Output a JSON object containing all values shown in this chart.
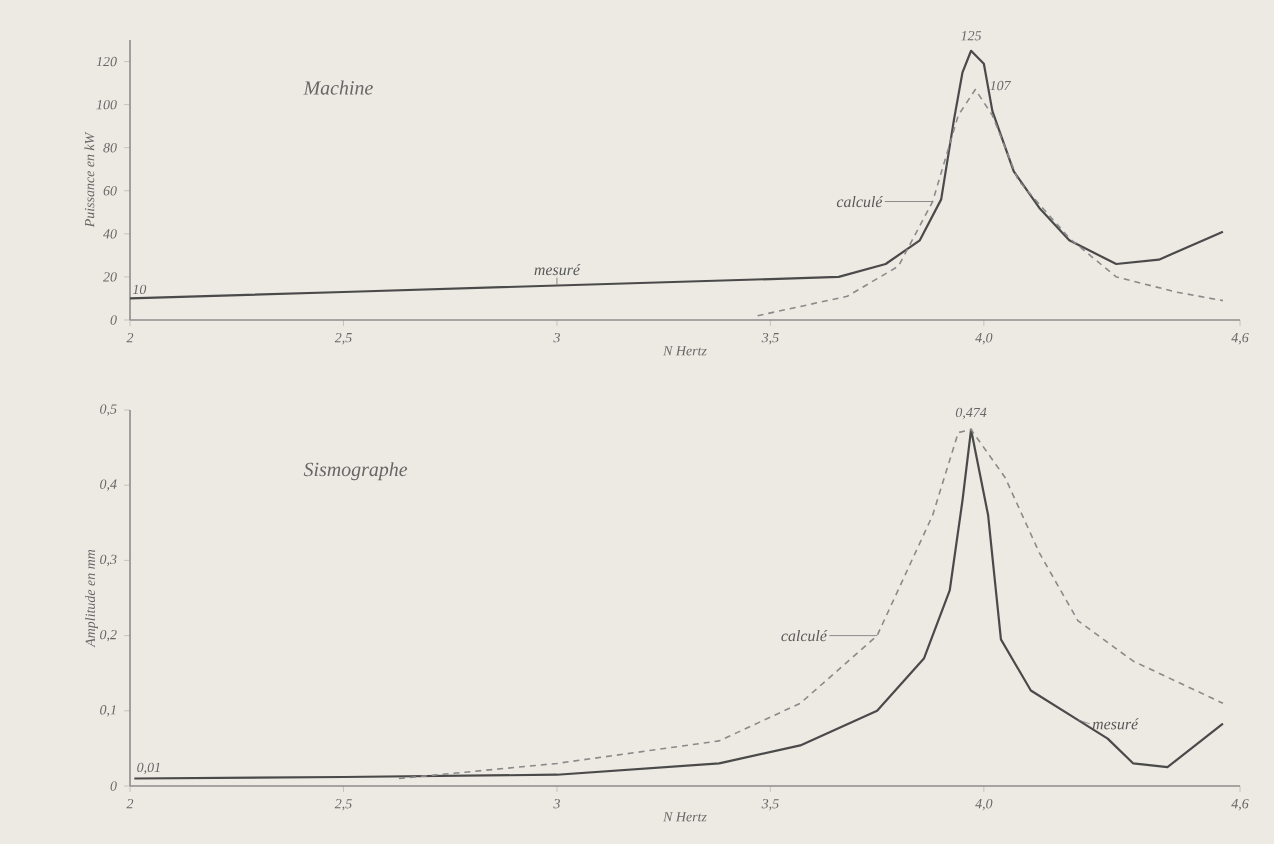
{
  "chart_data": [
    {
      "type": "line",
      "title": "Machine",
      "xlabel": "N Hertz",
      "ylabel": "Puissance en kW",
      "xlim": [
        2,
        4.6
      ],
      "xticks": [
        2,
        {
          "value": 2.5,
          "label": "2,5"
        },
        3,
        {
          "value": 3.5,
          "label": "3,5"
        },
        {
          "value": 4.0,
          "label": "4,0"
        },
        {
          "value": 4.6,
          "label": "4,6"
        }
      ],
      "ylim": [
        0,
        130
      ],
      "yticks": [
        0,
        20,
        40,
        60,
        80,
        100,
        120
      ],
      "series": [
        {
          "name": "mesuré",
          "color": "#4a4a4a",
          "line_style": "solid",
          "x": [
            2.0,
            2.5,
            3.0,
            3.5,
            3.66,
            3.77,
            3.85,
            3.9,
            3.93,
            3.95,
            3.97,
            4.0,
            4.02,
            4.07,
            4.13,
            4.2,
            4.31,
            4.41,
            4.56
          ],
          "values": [
            10,
            13,
            16,
            19,
            20,
            26,
            37,
            56,
            93,
            115,
            125,
            119,
            97,
            69,
            52,
            37,
            26,
            28,
            41
          ]
        },
        {
          "name": "calculé",
          "color": "#8a8a8a",
          "line_style": "dashed",
          "x": [
            3.47,
            3.68,
            3.8,
            3.88,
            3.94,
            3.98,
            4.02,
            4.08,
            4.2,
            4.31,
            4.45,
            4.56
          ],
          "values": [
            2,
            11,
            25,
            55,
            95,
            107,
            95,
            65,
            38,
            20,
            13,
            9
          ]
        }
      ],
      "annotations": [
        {
          "text": "10",
          "x": 2.0,
          "y": 10
        },
        {
          "text": "125",
          "x": 3.97,
          "y": 125
        },
        {
          "text": "107",
          "x": 3.98,
          "y": 107
        }
      ]
    },
    {
      "type": "line",
      "title": "Sismographe",
      "xlabel": "N Hertz",
      "ylabel": "Amplitude en mm",
      "xlim": [
        2,
        4.6
      ],
      "xticks": [
        2,
        {
          "value": 2.5,
          "label": "2,5"
        },
        3,
        {
          "value": 3.5,
          "label": "3,5"
        },
        {
          "value": 4.0,
          "label": "4,0"
        },
        {
          "value": 4.6,
          "label": "4,6"
        }
      ],
      "ylim": [
        0,
        0.5
      ],
      "yticks": [
        0,
        {
          "value": 0.1,
          "label": "0,1"
        },
        {
          "value": 0.2,
          "label": "0,2"
        },
        {
          "value": 0.3,
          "label": "0,3"
        },
        {
          "value": 0.4,
          "label": "0,4"
        },
        {
          "value": 0.5,
          "label": "0,5"
        }
      ],
      "series": [
        {
          "name": "mesuré",
          "color": "#4a4a4a",
          "line_style": "solid",
          "x": [
            2.01,
            2.5,
            3.0,
            3.38,
            3.57,
            3.75,
            3.86,
            3.92,
            3.95,
            3.97,
            4.01,
            4.04,
            4.11,
            4.22,
            4.29,
            4.35,
            4.43,
            4.56
          ],
          "values": [
            0.01,
            0.012,
            0.015,
            0.03,
            0.054,
            0.1,
            0.17,
            0.26,
            0.38,
            0.474,
            0.36,
            0.195,
            0.127,
            0.088,
            0.063,
            0.03,
            0.025,
            0.083
          ]
        },
        {
          "name": "calculé",
          "color": "#8a8a8a",
          "line_style": "dashed",
          "x": [
            2.63,
            3.0,
            3.38,
            3.57,
            3.75,
            3.88,
            3.94,
            3.97,
            4.05,
            4.13,
            4.22,
            4.35,
            4.56
          ],
          "values": [
            0.01,
            0.03,
            0.06,
            0.11,
            0.2,
            0.36,
            0.47,
            0.474,
            0.41,
            0.31,
            0.22,
            0.166,
            0.11
          ]
        }
      ],
      "annotations": [
        {
          "text": "0,01",
          "x": 2.01,
          "y": 0.01
        },
        {
          "text": "0,474",
          "x": 3.97,
          "y": 0.474
        }
      ]
    }
  ]
}
